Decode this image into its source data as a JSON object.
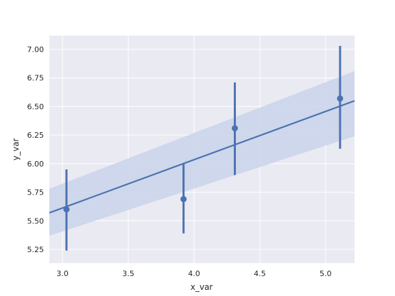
{
  "chart_data": {
    "type": "scatter",
    "title": "",
    "xlabel": "x_var",
    "ylabel": "y_var",
    "xlim": [
      2.9,
      5.22
    ],
    "ylim": [
      5.13,
      7.12
    ],
    "xticks": [
      3.0,
      3.5,
      4.0,
      4.5,
      5.0
    ],
    "xtick_labels": [
      "3.0",
      "3.5",
      "4.0",
      "4.5",
      "5.0"
    ],
    "yticks": [
      5.25,
      5.5,
      5.75,
      6.0,
      6.25,
      6.5,
      6.75,
      7.0
    ],
    "ytick_labels": [
      "5.25",
      "5.50",
      "5.75",
      "6.00",
      "6.25",
      "6.50",
      "6.75",
      "7.00"
    ],
    "grid": true,
    "points": [
      {
        "x": 3.03,
        "y": 5.6,
        "ci_low": 5.24,
        "ci_high": 5.95
      },
      {
        "x": 3.92,
        "y": 5.69,
        "ci_low": 5.39,
        "ci_high": 6.0
      },
      {
        "x": 4.31,
        "y": 6.31,
        "ci_low": 5.9,
        "ci_high": 6.71
      },
      {
        "x": 5.11,
        "y": 6.57,
        "ci_low": 6.13,
        "ci_high": 7.03
      }
    ],
    "regression": {
      "x": [
        2.9,
        5.22
      ],
      "y": [
        5.57,
        6.55
      ],
      "band_low": [
        5.37,
        6.24
      ],
      "band_high": [
        5.78,
        6.81
      ]
    },
    "colors": {
      "background": "#eaeaf2",
      "grid": "#ffffff",
      "series": "#4c72b0",
      "band": "#c9d3ea"
    }
  }
}
